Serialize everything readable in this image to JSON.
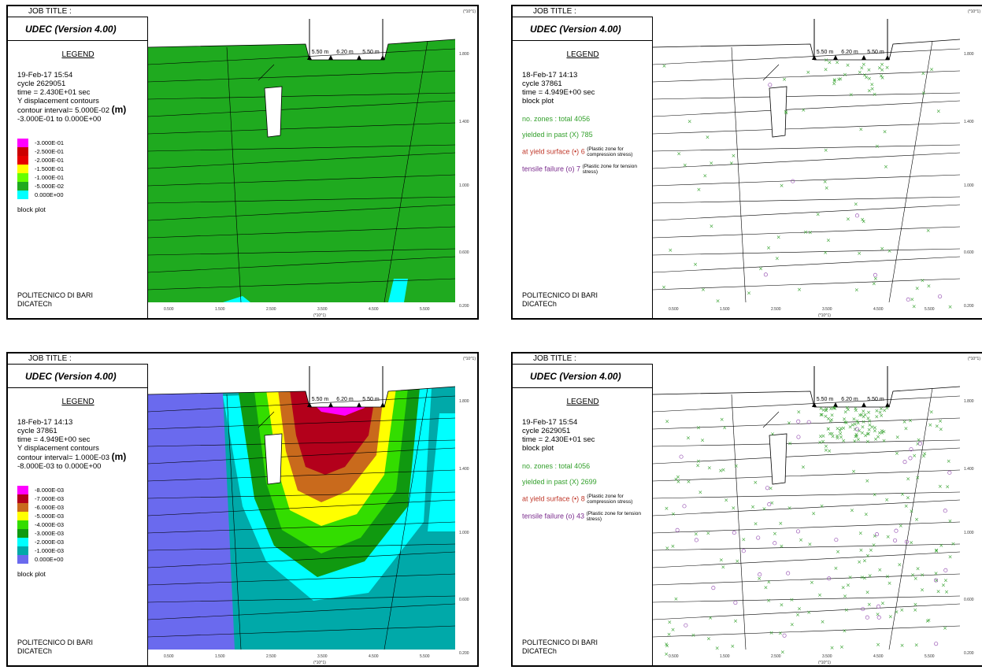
{
  "panels": [
    {
      "job_title": "JOB TITLE :",
      "program": "UDEC (Version 4.00)",
      "legend_title": "LEGEND",
      "date": "19-Feb-17  15:54",
      "cycle": "cycle   2629051",
      "time": "time  =  2.430E+01 sec",
      "contour_type": "Y displacement contours",
      "contour_interval": "contour interval= 5.000E-02",
      "unit": "(m)",
      "range": "-3.000E-01 to  0.000E+00",
      "scale": [
        {
          "label": "-3.000E-01",
          "color": "#ff00ff"
        },
        {
          "label": "-2.500E-01",
          "color": "#cc0000"
        },
        {
          "label": "-2.000E-01",
          "color": "#e60000"
        },
        {
          "label": "-1.500E-01",
          "color": "#ffff00"
        },
        {
          "label": "-1.000E-01",
          "color": "#66ff00"
        },
        {
          "label": "-5.000E-02",
          "color": "#1faa1f"
        },
        {
          "label": "0.000E+00",
          "color": "#00ffff"
        }
      ],
      "block_plot": "block plot",
      "org": "POLITECNICO DI BARI",
      "dept": "DICATECh"
    },
    {
      "job_title": "JOB TITLE :",
      "program": "UDEC (Version 4.00)",
      "legend_title": "LEGEND",
      "date": "18-Feb-17  14:13",
      "cycle": "cycle   37861",
      "time": "time  =  4.949E+00 sec",
      "block_plot": "block plot",
      "zones_label": "no. zones : total",
      "zones_value": "4056",
      "yielded_label": "yielded in past  (X)",
      "yielded_value": "785",
      "yield_surface_label": "at yield surface (•)",
      "yield_surface_value": "6",
      "yield_surface_note": "(Plastic zone for compression stress)",
      "tensile_label": "tensile failure  (o)",
      "tensile_value": "7",
      "tensile_note": "(Plastic zone for tension stress)",
      "org": "POLITECNICO DI BARI",
      "dept": "DICATECh"
    },
    {
      "job_title": "JOB TITLE :",
      "program": "UDEC (Version 4.00)",
      "legend_title": "LEGEND",
      "date": "18-Feb-17  14:13",
      "cycle": "cycle   37861",
      "time": "time  =  4.949E+00 sec",
      "contour_type": "Y displacement contours",
      "contour_interval": "contour interval= 1.000E-03",
      "unit": "(m)",
      "range": "-8.000E-03 to  0.000E+00",
      "scale": [
        {
          "label": "-8.000E-03",
          "color": "#ff00ff"
        },
        {
          "label": "-7.000E-03",
          "color": "#b3001b"
        },
        {
          "label": "-6.000E-03",
          "color": "#c96a1c"
        },
        {
          "label": "-5.000E-03",
          "color": "#ffff00"
        },
        {
          "label": "-4.000E-03",
          "color": "#33dd00"
        },
        {
          "label": "-3.000E-03",
          "color": "#109910"
        },
        {
          "label": "-2.000E-03",
          "color": "#00ffff"
        },
        {
          "label": "-1.000E-03",
          "color": "#00a9a9"
        },
        {
          "label": "0.000E+00",
          "color": "#6a6aee"
        }
      ],
      "block_plot": "block plot",
      "org": "POLITECNICO DI BARI",
      "dept": "DICATECh"
    },
    {
      "job_title": "JOB TITLE :",
      "program": "UDEC (Version 4.00)",
      "legend_title": "LEGEND",
      "date": "19-Feb-17  15:54",
      "cycle": "cycle   2629051",
      "time": "time  =  2.430E+01 sec",
      "block_plot": "block plot",
      "zones_label": "no. zones : total",
      "zones_value": "4056",
      "yielded_label": "yielded in past  (X)",
      "yielded_value": "2699",
      "yield_surface_label": "at yield surface (•)",
      "yield_surface_value": "8",
      "yield_surface_note": "(Plastic zone for compression stress)",
      "tensile_label": "tensile failure  (o)",
      "tensile_value": "43",
      "tensile_note": "(Plastic zone for tension stress)",
      "org": "POLITECNICO DI BARI",
      "dept": "DICATECh"
    }
  ],
  "plot": {
    "y_multiplier": "(*10^1)",
    "x_multiplier": "(*10^1)",
    "y_ticks": [
      "1.800",
      "1.400",
      "1.000",
      "0.600",
      "0.200"
    ],
    "x_ticks": [
      "0.500",
      "1.500",
      "2.500",
      "3.500",
      "4.500",
      "5.500"
    ],
    "dim_labels": [
      "5.50 m",
      "6.20 m",
      "5.50 m"
    ]
  }
}
